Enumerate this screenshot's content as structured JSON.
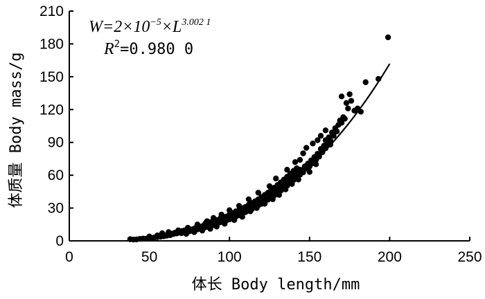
{
  "chart_data": {
    "type": "scatter",
    "xlabel": "体长 Body length/mm",
    "ylabel": "体质量 Body mass/g",
    "xlim": [
      0,
      250
    ],
    "ylim": [
      0,
      210
    ],
    "xticks": [
      "0",
      "50",
      "100",
      "150",
      "200",
      "250"
    ],
    "yticks": [
      "0",
      "30",
      "60",
      "90",
      "120",
      "150",
      "180",
      "210"
    ],
    "equation": {
      "prefix": "W=2×10",
      "exp1": "−5",
      "middle": "×L",
      "exp2": "3.002 1",
      "r2_label": "R",
      "r2_sup": "2",
      "r2_value": "=0.980 0"
    },
    "fit": {
      "a": 2e-05,
      "b": 3.0021,
      "x_range": [
        38,
        200
      ]
    },
    "series": [
      {
        "points": [
          [
            38,
            1.5
          ],
          [
            40,
            1.2
          ],
          [
            42,
            1.3
          ],
          [
            44,
            1.8
          ],
          [
            46,
            2.1
          ],
          [
            48,
            2.0
          ],
          [
            50,
            2.6
          ],
          [
            50,
            4.0
          ],
          [
            52,
            2.5
          ],
          [
            53,
            3.0
          ],
          [
            55,
            3.4
          ],
          [
            55,
            5.0
          ],
          [
            57,
            3.8
          ],
          [
            58,
            5.5
          ],
          [
            59,
            4.2
          ],
          [
            60,
            5.0
          ],
          [
            61,
            4.8
          ],
          [
            62,
            6.0
          ],
          [
            63,
            5.2
          ],
          [
            64,
            6.6
          ],
          [
            65,
            6.2
          ],
          [
            66,
            7.5
          ],
          [
            67,
            6.8
          ],
          [
            68,
            7.3
          ],
          [
            69,
            8.0
          ],
          [
            70,
            7.0
          ],
          [
            70,
            9.0
          ],
          [
            71,
            8.4
          ],
          [
            72,
            7.8
          ],
          [
            72,
            9.6
          ],
          [
            73,
            8.9
          ],
          [
            74,
            9.3
          ],
          [
            75,
            8.7
          ],
          [
            75,
            10.8
          ],
          [
            76,
            9.9
          ],
          [
            77,
            10.5
          ],
          [
            78,
            11.2
          ],
          [
            78,
            9.6
          ],
          [
            79,
            12.0
          ],
          [
            80,
            10.5
          ],
          [
            80,
            12.6
          ],
          [
            81,
            11.6
          ],
          [
            82,
            13.0
          ],
          [
            82,
            10.8
          ],
          [
            83,
            12.4
          ],
          [
            84,
            14.2
          ],
          [
            84,
            11.8
          ],
          [
            85,
            13.3
          ],
          [
            85,
            16.0
          ],
          [
            86,
            12.8
          ],
          [
            86,
            15.2
          ],
          [
            87,
            14.6
          ],
          [
            88,
            13.6
          ],
          [
            88,
            17.0
          ],
          [
            89,
            15.6
          ],
          [
            90,
            14.4
          ],
          [
            90,
            18.2
          ],
          [
            91,
            16.4
          ],
          [
            92,
            15.4
          ],
          [
            92,
            19.0
          ],
          [
            93,
            17.6
          ],
          [
            94,
            16.8
          ],
          [
            94,
            20.2
          ],
          [
            95,
            18.4
          ],
          [
            96,
            17.4
          ],
          [
            96,
            21.4
          ],
          [
            97,
            19.8
          ],
          [
            98,
            18.6
          ],
          [
            98,
            22.2
          ],
          [
            99,
            20.8
          ],
          [
            100,
            19.6
          ],
          [
            100,
            24.0
          ],
          [
            101,
            22.0
          ],
          [
            102,
            20.8
          ],
          [
            102,
            25.4
          ],
          [
            103,
            23.4
          ],
          [
            104,
            22.2
          ],
          [
            104,
            27.0
          ],
          [
            105,
            24.6
          ],
          [
            106,
            23.4
          ],
          [
            106,
            28.2
          ],
          [
            107,
            26.0
          ],
          [
            108,
            24.8
          ],
          [
            108,
            29.8
          ],
          [
            109,
            27.6
          ],
          [
            110,
            26.2
          ],
          [
            110,
            31.0
          ],
          [
            111,
            29.0
          ],
          [
            112,
            27.6
          ],
          [
            112,
            33.0
          ],
          [
            113,
            30.6
          ],
          [
            114,
            29.0
          ],
          [
            114,
            34.6
          ],
          [
            115,
            32.0
          ],
          [
            116,
            30.6
          ],
          [
            116,
            36.2
          ],
          [
            117,
            33.8
          ],
          [
            118,
            32.4
          ],
          [
            118,
            38.0
          ],
          [
            119,
            35.4
          ],
          [
            120,
            33.8
          ],
          [
            120,
            40.0
          ],
          [
            121,
            37.2
          ],
          [
            122,
            35.6
          ],
          [
            122,
            42.0
          ],
          [
            123,
            39.0
          ],
          [
            124,
            37.6
          ],
          [
            124,
            44.0
          ],
          [
            125,
            41.2
          ],
          [
            126,
            39.4
          ],
          [
            126,
            46.4
          ],
          [
            127,
            43.2
          ],
          [
            128,
            41.6
          ],
          [
            128,
            48.6
          ],
          [
            129,
            45.6
          ],
          [
            130,
            43.6
          ],
          [
            130,
            51.0
          ],
          [
            131,
            47.6
          ],
          [
            132,
            45.8
          ],
          [
            132,
            53.4
          ],
          [
            133,
            50.0
          ],
          [
            134,
            48.2
          ],
          [
            134,
            56.0
          ],
          [
            135,
            52.6
          ],
          [
            136,
            50.4
          ],
          [
            136,
            58.6
          ],
          [
            137,
            55.0
          ],
          [
            138,
            53.0
          ],
          [
            138,
            61.2
          ],
          [
            139,
            57.6
          ],
          [
            140,
            55.6
          ],
          [
            140,
            64.0
          ],
          [
            141,
            60.4
          ],
          [
            142,
            58.0
          ],
          [
            142,
            66.4
          ],
          [
            143,
            62.6
          ],
          [
            144,
            60.4
          ],
          [
            144,
            65.0
          ],
          [
            145,
            64.6
          ],
          [
            146,
            62.6
          ],
          [
            147,
            68.0
          ],
          [
            148,
            66.2
          ],
          [
            149,
            70.6
          ],
          [
            150,
            68.0
          ],
          [
            151,
            73.6
          ],
          [
            152,
            71.0
          ],
          [
            153,
            76.6
          ],
          [
            154,
            74.0
          ],
          [
            155,
            79.6
          ],
          [
            156,
            77.0
          ],
          [
            157,
            84.0
          ],
          [
            158,
            81.0
          ],
          [
            159,
            87.0
          ],
          [
            160,
            84.6
          ],
          [
            160,
            92.0
          ],
          [
            161,
            88.6
          ],
          [
            162,
            94.6
          ],
          [
            163,
            91.6
          ],
          [
            164,
            99.0
          ],
          [
            165,
            96.0
          ],
          [
            166,
            103.0
          ],
          [
            167,
            100.0
          ],
          [
            168,
            106.0
          ],
          [
            169,
            110.0
          ],
          [
            170,
            108.0
          ],
          [
            171,
            113.0
          ],
          [
            172,
            111.6
          ],
          [
            174,
            121.0
          ],
          [
            175,
            134.0
          ],
          [
            176,
            128.0
          ],
          [
            178,
            119.0
          ],
          [
            180,
            121.0
          ],
          [
            182,
            118.0
          ],
          [
            185,
            145.0
          ],
          [
            193,
            148.0
          ],
          [
            199,
            186.0
          ],
          [
            160,
            101.0
          ],
          [
            157,
            96.0
          ],
          [
            148,
            85.0
          ],
          [
            146,
            80.0
          ],
          [
            144,
            74.0
          ],
          [
            141,
            72.0
          ],
          [
            152,
            89.0
          ],
          [
            155,
            92.0
          ],
          [
            163,
            88.0
          ],
          [
            170,
            132.0
          ],
          [
            173,
            126.0
          ],
          [
            136,
            65.0
          ],
          [
            129,
            57.0
          ],
          [
            125,
            50.0
          ],
          [
            118,
            44.0
          ],
          [
            112,
            38.0
          ],
          [
            106,
            32.0
          ],
          [
            100,
            28.0
          ],
          [
            95,
            24.0
          ],
          [
            90,
            21.0
          ],
          [
            86,
            18.0
          ],
          [
            80,
            15.0
          ],
          [
            74,
            12.0
          ],
          [
            68,
            9.6
          ],
          [
            62,
            8.0
          ],
          [
            58,
            7.0
          ],
          [
            135,
            47.0
          ],
          [
            131,
            42.0
          ],
          [
            127,
            38.0
          ],
          [
            122,
            34.0
          ],
          [
            117,
            30.0
          ],
          [
            113,
            27.0
          ],
          [
            108,
            22.0
          ],
          [
            103,
            19.0
          ],
          [
            97,
            15.6
          ],
          [
            92,
            13.0
          ],
          [
            88,
            11.0
          ],
          [
            83,
            9.4
          ],
          [
            78,
            8.0
          ],
          [
            73,
            6.4
          ],
          [
            139,
            52.0
          ],
          [
            143,
            56.0
          ],
          [
            150,
            63.0
          ],
          [
            154,
            70.0
          ]
        ]
      }
    ]
  }
}
